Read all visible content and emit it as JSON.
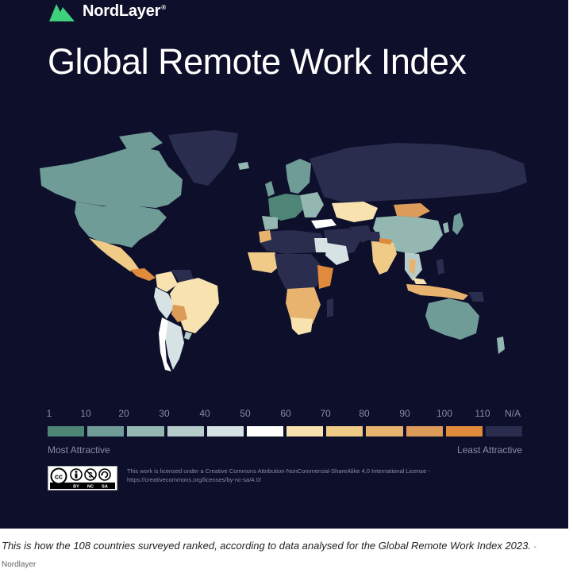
{
  "brand": {
    "name": "NordLayer",
    "registered": "®"
  },
  "title": "Global Remote Work Index",
  "scale": {
    "labels": [
      "1",
      "10",
      "20",
      "30",
      "40",
      "50",
      "60",
      "70",
      "80",
      "90",
      "100",
      "110",
      "N/A"
    ],
    "colors": [
      "#4e8577",
      "#6f9c96",
      "#94b7b2",
      "#b6cccb",
      "#d6e2e4",
      "#ffffff",
      "#f7e2b0",
      "#efcb87",
      "#e8b36e",
      "#dd9b5a",
      "#e08a3c",
      "#2a2d4e"
    ],
    "most": "Most Attractive",
    "least": "Least Attractive"
  },
  "map": {
    "na_color": "#2a2d4e",
    "background": "#0d0f2b"
  },
  "license": {
    "badge": [
      "BY",
      "NC",
      "SA"
    ],
    "badge_icons": [
      "cc-icon",
      "by-icon",
      "nc-icon",
      "sa-icon"
    ],
    "line1": "This work is licensed under a Creative Commons Attribution-NonCommercial-ShareAlike 4.0 International License -",
    "line2": "https://creativecommons.org/licenses/by-nc-sa/4.0/"
  },
  "caption": {
    "text": "This is how the 108 countries surveyed ranked, according to data analysed for the Global Remote Work Index 2023.",
    "credit": "- Nordlayer"
  }
}
